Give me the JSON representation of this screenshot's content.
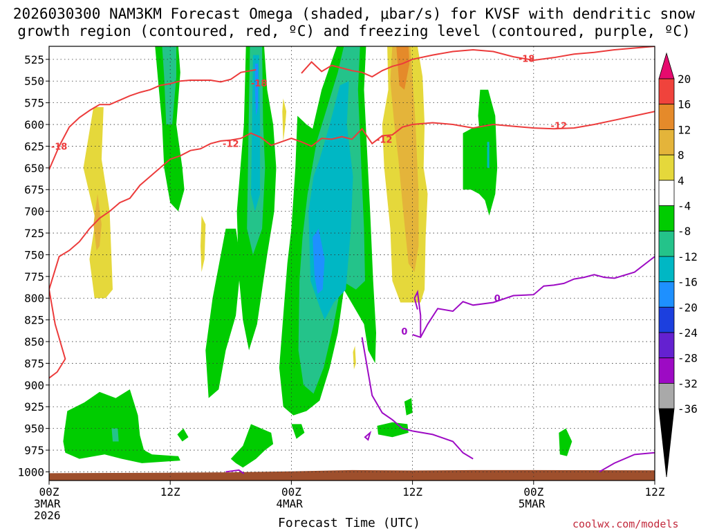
{
  "title_line1": "2026030300 NAM3KM Forecast Omega (shaded, μbar/s) for KVSF with dendritic snow",
  "title_line2": "growth region (contoured, red, ºC) and freezing level (contoured, purple, ºC)",
  "credit": "coolwx.com/models",
  "chart_data": {
    "type": "heatmap",
    "xlabel": "Forecast Time (UTC)",
    "x_ticks": [
      {
        "hour": 0,
        "lines": [
          "00Z",
          "3MAR",
          "2026"
        ]
      },
      {
        "hour": 12,
        "lines": [
          "12Z"
        ]
      },
      {
        "hour": 24,
        "lines": [
          "00Z",
          "4MAR"
        ]
      },
      {
        "hour": 36,
        "lines": [
          "12Z"
        ]
      },
      {
        "hour": 48,
        "lines": [
          "00Z",
          "5MAR"
        ]
      },
      {
        "hour": 60,
        "lines": [
          "12Z"
        ]
      }
    ],
    "xlim_hours": [
      0,
      60
    ],
    "y_pressure_levels_hPa": [
      525,
      550,
      575,
      600,
      625,
      650,
      675,
      700,
      725,
      750,
      775,
      800,
      825,
      850,
      875,
      900,
      925,
      950,
      975,
      1000
    ],
    "ylim_hPa": [
      510,
      1010
    ],
    "grid": true,
    "colorbar": {
      "ticks": [
        20,
        16,
        12,
        8,
        4,
        -4,
        -8,
        -12,
        -16,
        -20,
        -24,
        -28,
        -32,
        -36
      ],
      "colors": [
        "#e60a6e",
        "#f0433c",
        "#e58a2a",
        "#e4b43a",
        "#e5d83b",
        "#ffffff",
        "#00cc00",
        "#24c38a",
        "#00b7c4",
        "#1e90ff",
        "#1c3fde",
        "#6421d0",
        "#9d0bc4",
        "#a9a9a9",
        "#000000"
      ]
    },
    "contour_labels": {
      "red": [
        "-18",
        "-18",
        "-18",
        "-12",
        "-12",
        "-12"
      ],
      "purple": [
        "0",
        "0"
      ]
    },
    "dgz_contours_hPa": {
      "minus18": {
        "hours": [
          0,
          1,
          2,
          3,
          4,
          5,
          6,
          7,
          8,
          9,
          10,
          11,
          12,
          13,
          14,
          15,
          16,
          17,
          18,
          19,
          20,
          20.5
        ],
        "p": [
          652,
          625,
          603,
          592,
          584,
          577,
          577,
          572,
          567,
          563,
          560,
          555,
          553,
          550,
          549,
          549,
          549,
          551,
          548,
          540,
          538,
          537
        ]
      },
      "minus18_b": {
        "hours": [
          25,
          26,
          27,
          28,
          29,
          30,
          31,
          32,
          33,
          34,
          35,
          36,
          38,
          40,
          42,
          44,
          46,
          48,
          50,
          52,
          54,
          56,
          58,
          60
        ],
        "p": [
          541,
          528,
          539,
          532,
          535,
          538,
          540,
          545,
          538,
          533,
          530,
          525,
          520,
          516,
          514,
          516,
          522,
          526,
          523,
          519,
          517,
          514,
          512,
          510
        ]
      },
      "minus12": {
        "hours": [
          0,
          1,
          2,
          3,
          4,
          5,
          6,
          7,
          8,
          9,
          10,
          11,
          12,
          13,
          14,
          15,
          16,
          17,
          18,
          19,
          20,
          21,
          22,
          23,
          24,
          25,
          26,
          27,
          28,
          29,
          30,
          31,
          32,
          33,
          34,
          35,
          36,
          38,
          40,
          42,
          44,
          46,
          48,
          50,
          52,
          54,
          56,
          58,
          60
        ],
        "p": [
          790,
          752,
          745,
          735,
          720,
          708,
          700,
          690,
          685,
          670,
          660,
          650,
          640,
          636,
          630,
          628,
          622,
          619,
          618,
          616,
          610,
          615,
          624,
          620,
          616,
          620,
          625,
          616,
          617,
          614,
          617,
          605,
          622,
          613,
          612,
          603,
          600,
          598,
          600,
          604,
          600,
          602,
          604,
          605,
          604,
          600,
          595,
          590,
          585
        ]
      },
      "freezing": {
        "hours": [
          36,
          36.8,
          37.5,
          38.5,
          40,
          41,
          42,
          44,
          46,
          48,
          49,
          50,
          51,
          52,
          53,
          54,
          55,
          56,
          58,
          60
        ],
        "p": [
          842,
          845,
          830,
          812,
          815,
          804,
          808,
          805,
          797,
          796,
          786,
          785,
          783,
          778,
          776,
          773,
          776,
          777,
          770,
          752
        ]
      },
      "freezing_low": {
        "hours": [
          31,
          32,
          33,
          34,
          35,
          36,
          38,
          40,
          41,
          42
        ],
        "p": [
          845,
          912,
          932,
          940,
          950,
          953,
          957,
          965,
          978,
          985
        ]
      }
    }
  }
}
